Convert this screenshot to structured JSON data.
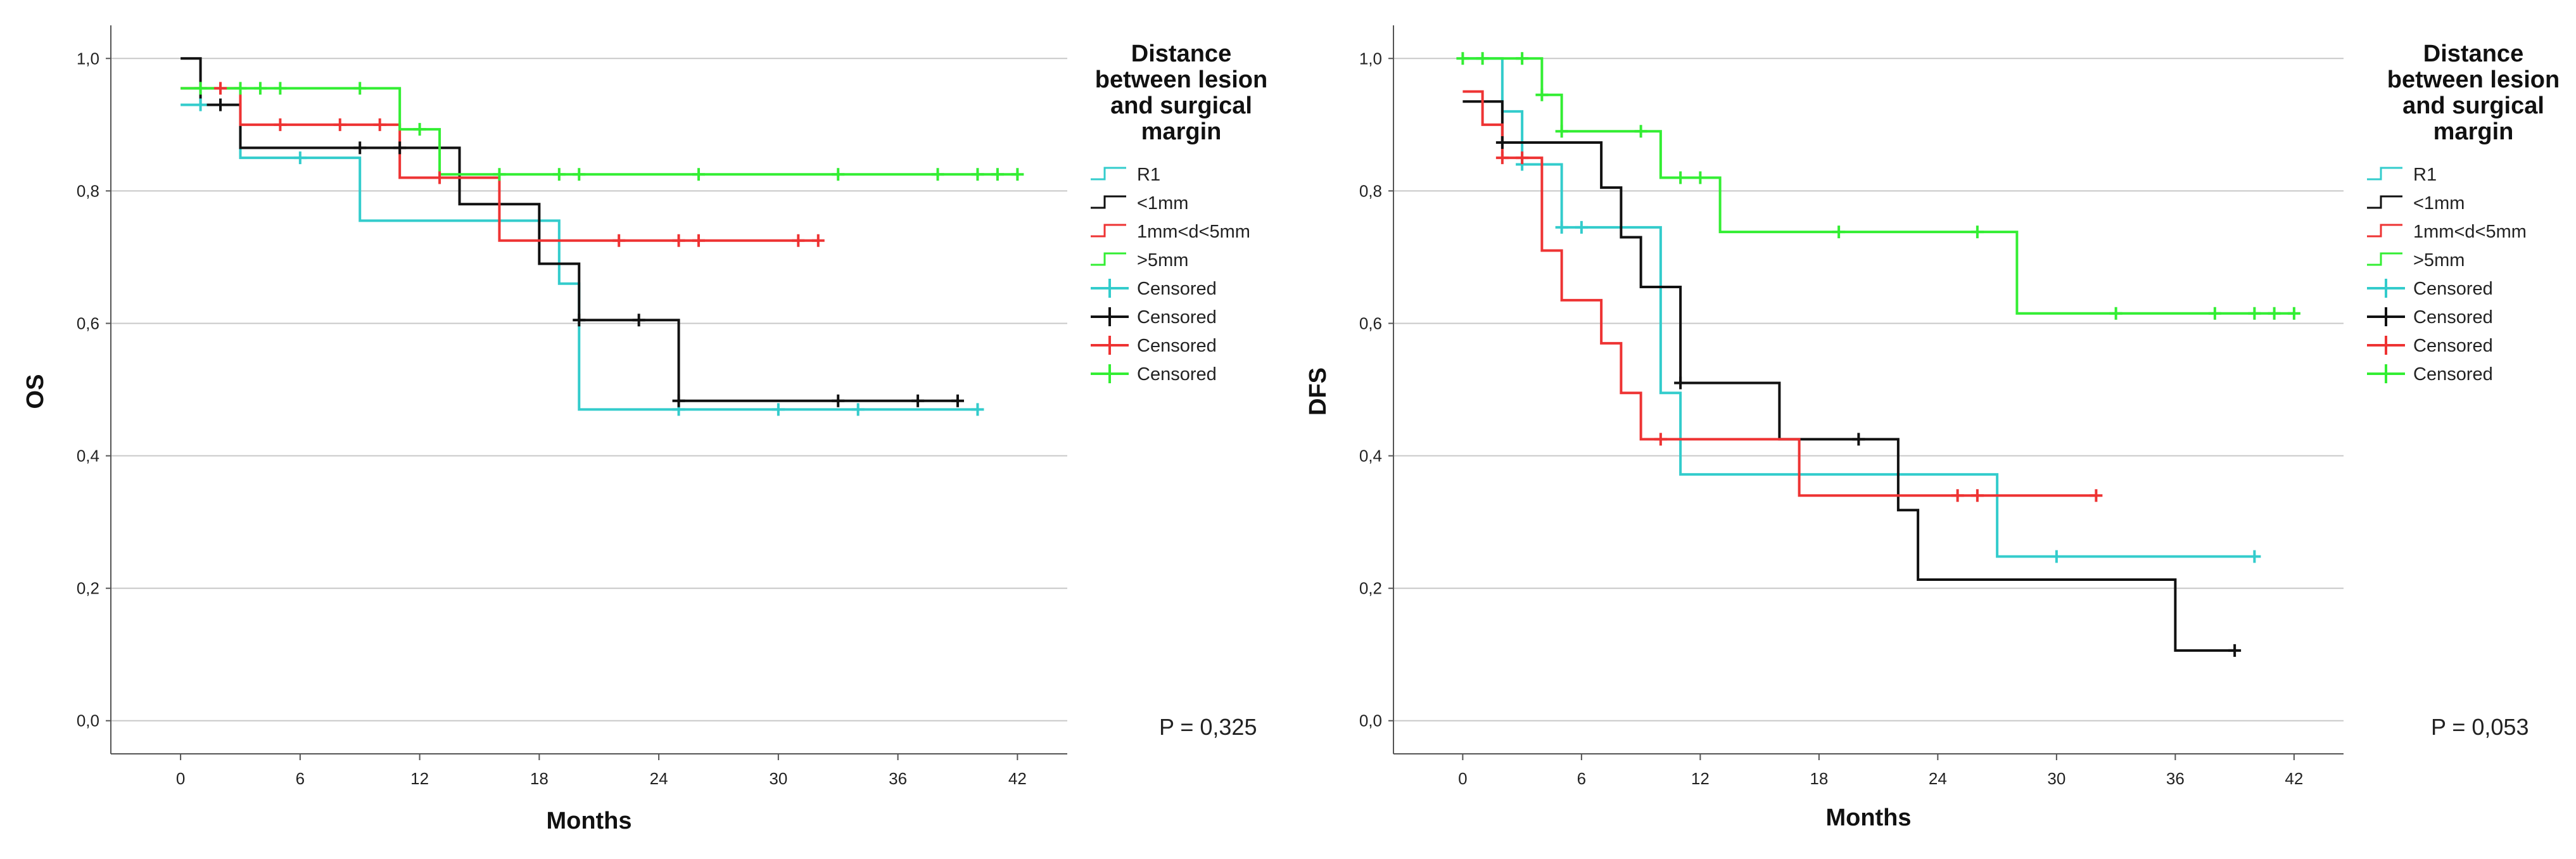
{
  "colors": {
    "R1": "#33cccc",
    "lt1mm": "#111111",
    "mid": "#ee3333",
    "gt5mm": "#33ee33",
    "grid": "#c8c8c8",
    "axis": "#555555"
  },
  "chart_data": [
    {
      "type": "line",
      "subtype": "kaplan-meier",
      "ylabel": "OS",
      "xlabel": "Months",
      "xlim": [
        -3.5,
        44.5
      ],
      "ylim": [
        -0.05,
        1.05
      ],
      "xticks": [
        0,
        6,
        12,
        18,
        24,
        30,
        36,
        42
      ],
      "xtick_labels": [
        "0",
        "6",
        "12",
        "18",
        "24",
        "30",
        "36",
        "42"
      ],
      "yticks": [
        0.0,
        0.2,
        0.4,
        0.6,
        0.8,
        1.0
      ],
      "ytick_labels": [
        "0,0",
        "0,2",
        "0,4",
        "0,6",
        "0,8",
        "1,0"
      ],
      "legend_title": [
        "Distance",
        "between lesion",
        "and surgical",
        "margin"
      ],
      "legend": [
        "R1",
        "<1mm",
        "1mm<d<5mm",
        ">5mm",
        "Censored",
        "Censored",
        "Censored",
        "Censored"
      ],
      "p_value": "P = 0,325",
      "series": [
        {
          "name": "R1",
          "color_key": "R1",
          "steps": [
            [
              0,
              0.93
            ],
            [
              3,
              0.85
            ],
            [
              9,
              0.755
            ],
            [
              19,
              0.66
            ],
            [
              20,
              0.47
            ],
            [
              40,
              0.47
            ]
          ],
          "censored": [
            [
              1,
              0.93
            ],
            [
              6,
              0.85
            ],
            [
              25,
              0.47
            ],
            [
              30,
              0.47
            ],
            [
              34,
              0.47
            ],
            [
              40,
              0.47
            ]
          ]
        },
        {
          "name": "<1mm",
          "color_key": "lt1mm",
          "steps": [
            [
              0,
              1.0
            ],
            [
              1,
              0.93
            ],
            [
              3,
              0.865
            ],
            [
              14,
              0.78
            ],
            [
              18,
              0.69
            ],
            [
              20,
              0.605
            ],
            [
              25,
              0.483
            ],
            [
              39,
              0.483
            ]
          ],
          "censored": [
            [
              2,
              0.93
            ],
            [
              9,
              0.865
            ],
            [
              11,
              0.865
            ],
            [
              20,
              0.605
            ],
            [
              23,
              0.605
            ],
            [
              25,
              0.483
            ],
            [
              33,
              0.483
            ],
            [
              37,
              0.483
            ],
            [
              39,
              0.483
            ]
          ]
        },
        {
          "name": "1mm<d<5mm",
          "color_key": "mid",
          "steps": [
            [
              0,
              0.955
            ],
            [
              3,
              0.9
            ],
            [
              11,
              0.82
            ],
            [
              16,
              0.725
            ],
            [
              32,
              0.725
            ]
          ],
          "censored": [
            [
              2,
              0.955
            ],
            [
              5,
              0.9
            ],
            [
              8,
              0.9
            ],
            [
              10,
              0.9
            ],
            [
              13,
              0.82
            ],
            [
              22,
              0.725
            ],
            [
              25,
              0.725
            ],
            [
              26,
              0.725
            ],
            [
              31,
              0.725
            ],
            [
              32,
              0.725
            ]
          ]
        },
        {
          "name": ">5mm",
          "color_key": "gt5mm",
          "steps": [
            [
              0,
              0.955
            ],
            [
              11,
              0.893
            ],
            [
              13,
              0.825
            ],
            [
              42,
              0.825
            ]
          ],
          "censored": [
            [
              1,
              0.955
            ],
            [
              3,
              0.955
            ],
            [
              4,
              0.955
            ],
            [
              5,
              0.955
            ],
            [
              9,
              0.955
            ],
            [
              12,
              0.893
            ],
            [
              16,
              0.825
            ],
            [
              19,
              0.825
            ],
            [
              20,
              0.825
            ],
            [
              26,
              0.825
            ],
            [
              33,
              0.825
            ],
            [
              38,
              0.825
            ],
            [
              40,
              0.825
            ],
            [
              41,
              0.825
            ],
            [
              42,
              0.825
            ]
          ]
        }
      ]
    },
    {
      "type": "line",
      "subtype": "kaplan-meier",
      "ylabel": "DFS",
      "xlabel": "Months",
      "xlim": [
        -3.5,
        44.5
      ],
      "ylim": [
        -0.05,
        1.05
      ],
      "xticks": [
        0,
        6,
        12,
        18,
        24,
        30,
        36,
        42
      ],
      "xtick_labels": [
        "0",
        "6",
        "12",
        "18",
        "24",
        "30",
        "36",
        "42"
      ],
      "yticks": [
        0.0,
        0.2,
        0.4,
        0.6,
        0.8,
        1.0
      ],
      "ytick_labels": [
        "0,0",
        "0,2",
        "0,4",
        "0,6",
        "0,8",
        "1,0"
      ],
      "legend_title": [
        "Distance",
        "between lesion",
        "and surgical",
        "margin"
      ],
      "legend": [
        "R1",
        "<1mm",
        "1mm<d<5mm",
        ">5mm",
        "Censored",
        "Censored",
        "Censored",
        "Censored"
      ],
      "p_value": "P = 0,053",
      "series": [
        {
          "name": "R1",
          "color_key": "R1",
          "steps": [
            [
              0,
              1.0
            ],
            [
              2,
              0.92
            ],
            [
              3,
              0.84
            ],
            [
              5,
              0.745
            ],
            [
              10,
              0.495
            ],
            [
              11,
              0.372
            ],
            [
              27,
              0.248
            ],
            [
              40,
              0.248
            ]
          ],
          "censored": [
            [
              3,
              0.84
            ],
            [
              5,
              0.745
            ],
            [
              6,
              0.745
            ],
            [
              30,
              0.248
            ],
            [
              40,
              0.248
            ]
          ]
        },
        {
          "name": "<1mm",
          "color_key": "lt1mm",
          "steps": [
            [
              0,
              0.935
            ],
            [
              2,
              0.873
            ],
            [
              7,
              0.805
            ],
            [
              8,
              0.73
            ],
            [
              9,
              0.655
            ],
            [
              11,
              0.51
            ],
            [
              16,
              0.425
            ],
            [
              22,
              0.318
            ],
            [
              23,
              0.213
            ],
            [
              36,
              0.106
            ],
            [
              39,
              0.106
            ]
          ],
          "censored": [
            [
              2,
              0.873
            ],
            [
              11,
              0.51
            ],
            [
              20,
              0.425
            ],
            [
              39,
              0.106
            ]
          ]
        },
        {
          "name": "1mm<d<5mm",
          "color_key": "mid",
          "steps": [
            [
              0,
              0.95
            ],
            [
              1,
              0.9
            ],
            [
              2,
              0.85
            ],
            [
              4,
              0.71
            ],
            [
              5,
              0.635
            ],
            [
              7,
              0.57
            ],
            [
              8,
              0.495
            ],
            [
              9,
              0.425
            ],
            [
              17,
              0.34
            ],
            [
              32,
              0.34
            ]
          ],
          "censored": [
            [
              2,
              0.85
            ],
            [
              3,
              0.85
            ],
            [
              10,
              0.425
            ],
            [
              25,
              0.34
            ],
            [
              26,
              0.34
            ],
            [
              32,
              0.34
            ]
          ]
        },
        {
          "name": ">5mm",
          "color_key": "gt5mm",
          "steps": [
            [
              0,
              1.0
            ],
            [
              4,
              0.945
            ],
            [
              5,
              0.89
            ],
            [
              10,
              0.82
            ],
            [
              13,
              0.738
            ],
            [
              28,
              0.615
            ],
            [
              42,
              0.615
            ]
          ],
          "censored": [
            [
              0,
              1.0
            ],
            [
              1,
              1.0
            ],
            [
              3,
              1.0
            ],
            [
              4,
              0.945
            ],
            [
              5,
              0.89
            ],
            [
              9,
              0.89
            ],
            [
              11,
              0.82
            ],
            [
              12,
              0.82
            ],
            [
              19,
              0.738
            ],
            [
              26,
              0.738
            ],
            [
              33,
              0.615
            ],
            [
              38,
              0.615
            ],
            [
              40,
              0.615
            ],
            [
              41,
              0.615
            ],
            [
              42,
              0.615
            ]
          ]
        }
      ]
    }
  ]
}
